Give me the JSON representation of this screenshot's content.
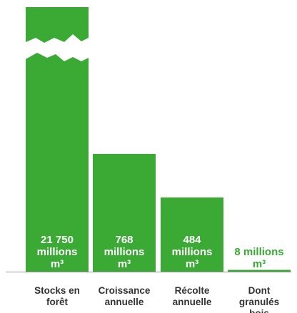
{
  "chart_data": {
    "type": "bar",
    "categories": [
      [
        "Stocks en",
        "forêt"
      ],
      [
        "Croissance",
        "annuelle"
      ],
      [
        "Récolte",
        "annuelle"
      ],
      [
        "Dont",
        "granulés",
        "bois"
      ]
    ],
    "values": [
      21750,
      768,
      484,
      8
    ],
    "value_labels": [
      [
        "21 750",
        "millions",
        "m³"
      ],
      [
        "768",
        "millions",
        "m³"
      ],
      [
        "484",
        "millions",
        "m³"
      ],
      [
        "8 millions",
        "m³"
      ]
    ],
    "unit": "millions m³",
    "axis_break": true,
    "colors": {
      "bar": "#3aaa35",
      "label_inside": "#ffffff",
      "label_outside": "#3aaa35",
      "axis": "#999999"
    }
  }
}
